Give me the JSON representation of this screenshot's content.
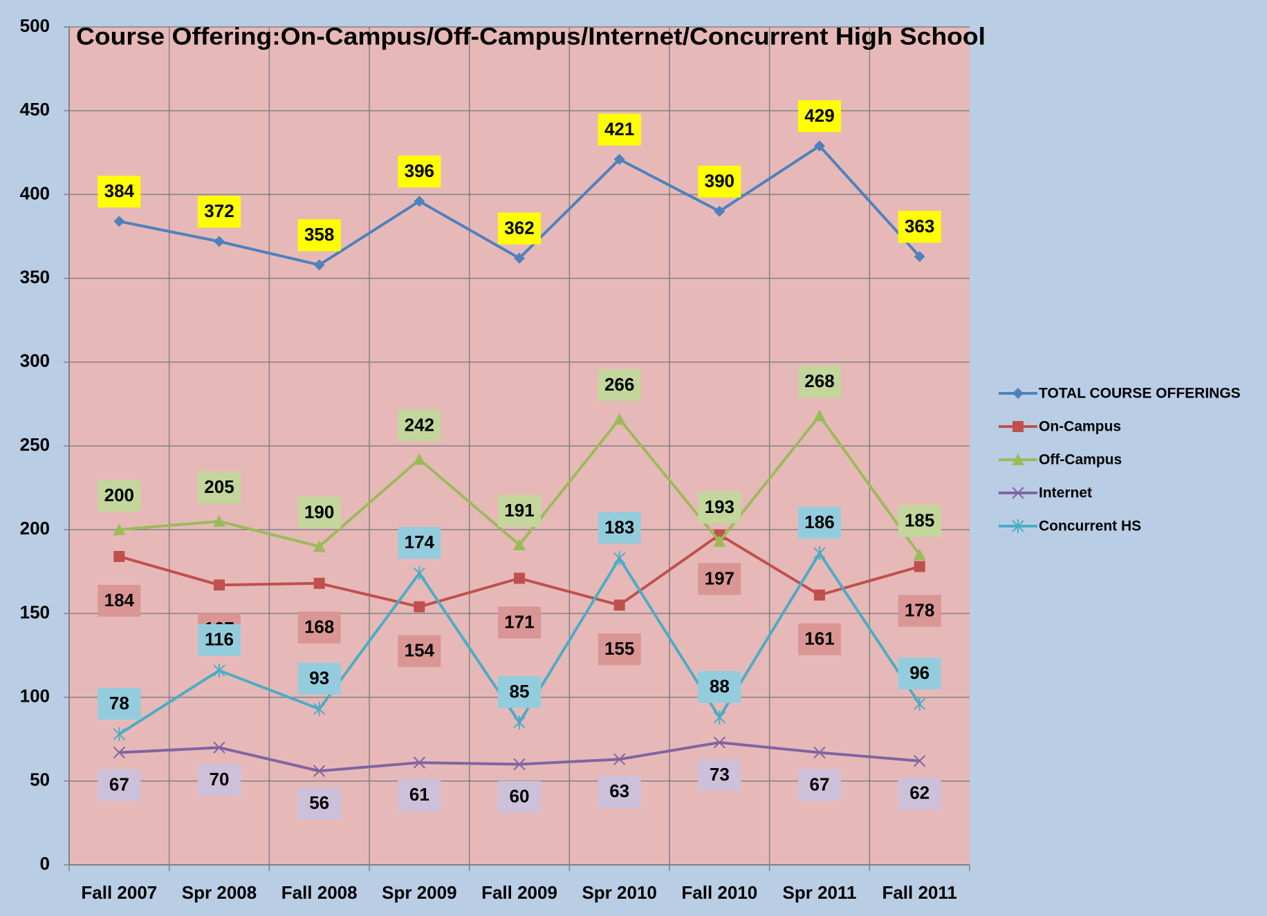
{
  "chart_data": {
    "type": "line",
    "title": "Course Offering:On-Campus/Off-Campus/Internet/Concurrent High School",
    "categories": [
      "Fall 2007",
      "Spr 2008",
      "Fall 2008",
      "Spr 2009",
      "Fall 2009",
      "Spr 2010",
      "Fall 2010",
      "Spr 2011",
      "Fall 2011"
    ],
    "series": [
      {
        "name": "TOTAL COURSE OFFERINGS",
        "color": "#4f81bd",
        "marker": "diamond",
        "label_color": "#ffff00",
        "values": [
          384,
          372,
          358,
          396,
          362,
          421,
          390,
          429,
          363
        ]
      },
      {
        "name": "On-Campus",
        "color": "#c0504d",
        "marker": "square",
        "label_color": "#d99694",
        "values": [
          184,
          167,
          168,
          154,
          171,
          155,
          197,
          161,
          178
        ]
      },
      {
        "name": "Off-Campus",
        "color": "#9bbb59",
        "marker": "triangle",
        "label_color": "#c3d69b",
        "values": [
          200,
          205,
          190,
          242,
          191,
          266,
          193,
          268,
          185
        ]
      },
      {
        "name": "Internet",
        "color": "#8064a2",
        "marker": "x",
        "label_color": "#ccc0da",
        "values": [
          67,
          70,
          56,
          61,
          60,
          63,
          73,
          67,
          62
        ]
      },
      {
        "name": "Concurrent HS",
        "color": "#4bacc6",
        "marker": "star",
        "label_color": "#93cddd",
        "values": [
          78,
          116,
          93,
          174,
          85,
          183,
          88,
          186,
          96
        ]
      }
    ],
    "ylim": [
      0,
      500
    ],
    "yticks": [
      0,
      50,
      100,
      150,
      200,
      250,
      300,
      350,
      400,
      450,
      500
    ],
    "grid": true,
    "legend": "right"
  }
}
